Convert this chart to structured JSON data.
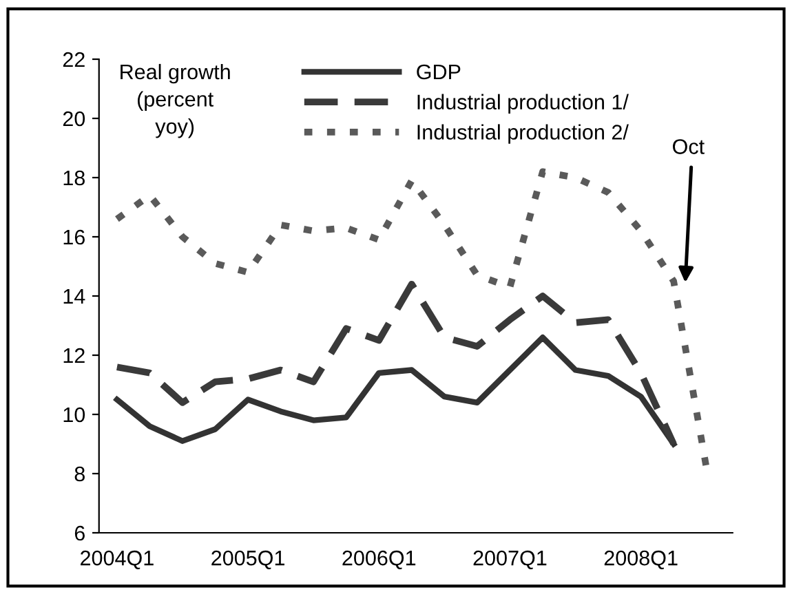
{
  "chart_data": {
    "type": "line",
    "ylabel": "Real growth\n(percent\nyoy)",
    "categories": [
      "2004Q1",
      null,
      null,
      null,
      "2005Q1",
      null,
      null,
      null,
      "2006Q1",
      null,
      null,
      null,
      "2007Q1",
      null,
      null,
      null,
      "2008Q1",
      null,
      null
    ],
    "series": [
      {
        "name": "GDP",
        "color": "#333333",
        "line_style": "solid",
        "values": [
          10.5,
          9.6,
          9.1,
          9.5,
          10.5,
          10.1,
          9.8,
          9.9,
          11.4,
          11.5,
          10.6,
          10.4,
          11.5,
          12.6,
          11.5,
          11.3,
          10.6,
          9.0,
          null
        ]
      },
      {
        "name": "Industrial production 1/",
        "color": "#3a3a3a",
        "line_style": "dashed",
        "values": [
          11.6,
          11.4,
          10.4,
          11.1,
          11.2,
          11.5,
          11.1,
          12.9,
          12.5,
          14.4,
          12.6,
          12.3,
          13.2,
          14.0,
          13.1,
          13.2,
          11.4,
          9.0,
          null
        ]
      },
      {
        "name": "Industrial production 2/",
        "color": "#5a5a5a",
        "line_style": "dotted",
        "values": [
          16.6,
          17.4,
          16.0,
          15.1,
          14.8,
          16.4,
          16.2,
          16.3,
          15.9,
          17.9,
          16.4,
          14.7,
          14.3,
          18.2,
          18.0,
          17.5,
          16.2,
          14.5,
          8.2
        ]
      }
    ],
    "ylim": [
      6,
      22
    ],
    "yticks": [
      6,
      8,
      10,
      12,
      14,
      16,
      18,
      20,
      22
    ],
    "annotations": [
      "Oct"
    ],
    "legend": "top",
    "grid": false,
    "marker": "none"
  }
}
